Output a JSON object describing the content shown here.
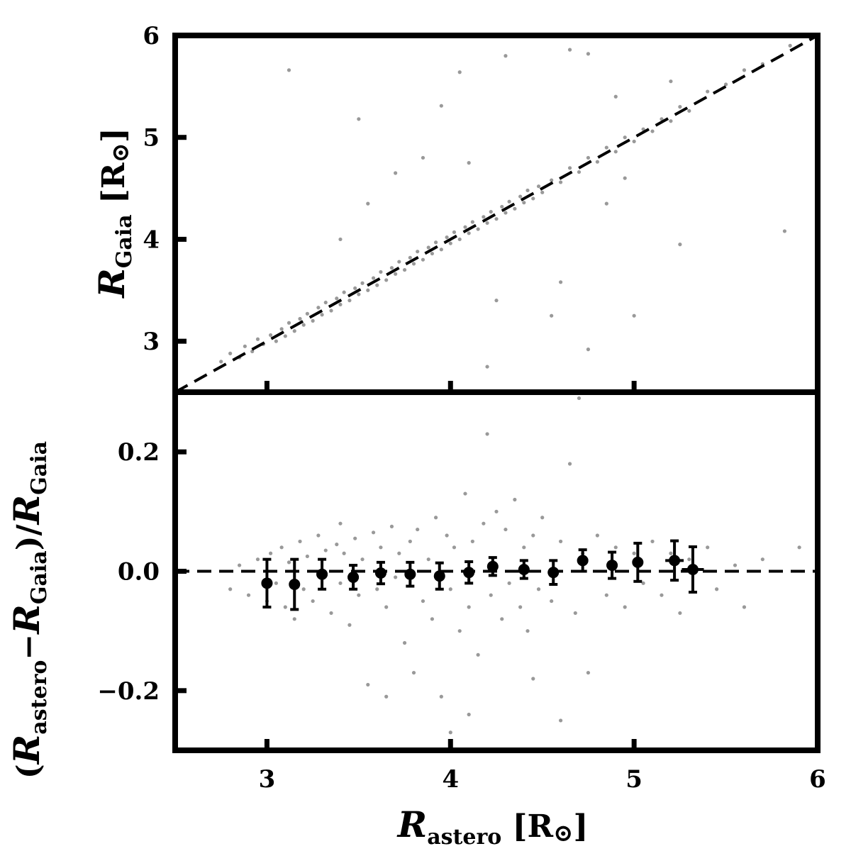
{
  "chart_data": [
    {
      "type": "scatter",
      "panel": "top",
      "xlabel": "R_astero [R⊙]",
      "ylabel": "R_Gaia [R⊙]",
      "xlim": [
        2.5,
        6
      ],
      "ylim": [
        2.5,
        6
      ],
      "xticks": [
        3,
        4,
        5,
        6
      ],
      "yticks": [
        3,
        4,
        5,
        6
      ],
      "grid": false,
      "point_color": "#999999",
      "reference_line": {
        "style": "dashed",
        "x": [
          2.5,
          6
        ],
        "y": [
          2.5,
          6
        ],
        "color": "#000000"
      },
      "series": [
        {
          "points": [
            [
              2.75,
              2.8
            ],
            [
              2.8,
              2.88
            ],
            [
              2.85,
              2.84
            ],
            [
              2.88,
              2.95
            ],
            [
              2.92,
              2.9
            ],
            [
              2.95,
              3.02
            ],
            [
              2.98,
              2.97
            ],
            [
              3.02,
              3.06
            ],
            [
              3.05,
              3.0
            ],
            [
              3.08,
              3.12
            ],
            [
              3.1,
              3.05
            ],
            [
              3.12,
              3.18
            ],
            [
              3.15,
              3.1
            ],
            [
              3.18,
              3.22
            ],
            [
              3.2,
              3.16
            ],
            [
              3.22,
              3.27
            ],
            [
              3.25,
              3.2
            ],
            [
              3.28,
              3.33
            ],
            [
              3.3,
              3.26
            ],
            [
              3.32,
              3.38
            ],
            [
              3.35,
              3.3
            ],
            [
              3.38,
              3.42
            ],
            [
              3.4,
              3.36
            ],
            [
              3.42,
              3.48
            ],
            [
              3.45,
              3.4
            ],
            [
              3.48,
              3.52
            ],
            [
              3.5,
              3.46
            ],
            [
              3.52,
              3.57
            ],
            [
              3.55,
              3.5
            ],
            [
              3.58,
              3.62
            ],
            [
              3.6,
              3.55
            ],
            [
              3.62,
              3.68
            ],
            [
              3.65,
              3.6
            ],
            [
              3.68,
              3.72
            ],
            [
              3.7,
              3.66
            ],
            [
              3.72,
              3.78
            ],
            [
              3.75,
              3.7
            ],
            [
              3.78,
              3.82
            ],
            [
              3.8,
              3.76
            ],
            [
              3.82,
              3.88
            ],
            [
              3.85,
              3.8
            ],
            [
              3.88,
              3.92
            ],
            [
              3.9,
              3.86
            ],
            [
              3.92,
              3.97
            ],
            [
              3.95,
              3.9
            ],
            [
              3.98,
              4.02
            ],
            [
              4.0,
              3.96
            ],
            [
              4.02,
              4.07
            ],
            [
              4.05,
              4.0
            ],
            [
              4.08,
              4.12
            ],
            [
              4.1,
              4.06
            ],
            [
              4.12,
              4.17
            ],
            [
              4.15,
              4.1
            ],
            [
              4.18,
              4.22
            ],
            [
              4.2,
              4.16
            ],
            [
              4.22,
              4.27
            ],
            [
              4.25,
              4.2
            ],
            [
              4.28,
              4.32
            ],
            [
              4.3,
              4.26
            ],
            [
              4.32,
              4.37
            ],
            [
              4.35,
              4.3
            ],
            [
              4.38,
              4.42
            ],
            [
              4.4,
              4.36
            ],
            [
              4.42,
              4.48
            ],
            [
              4.45,
              4.4
            ],
            [
              4.48,
              4.52
            ],
            [
              4.5,
              4.46
            ],
            [
              4.55,
              4.58
            ],
            [
              4.6,
              4.56
            ],
            [
              4.65,
              4.7
            ],
            [
              4.7,
              4.66
            ],
            [
              4.75,
              4.8
            ],
            [
              4.8,
              4.76
            ],
            [
              4.85,
              4.9
            ],
            [
              4.9,
              4.86
            ],
            [
              4.95,
              5.0
            ],
            [
              5.0,
              4.96
            ],
            [
              5.05,
              5.08
            ],
            [
              5.1,
              5.06
            ],
            [
              5.15,
              5.18
            ],
            [
              5.2,
              5.16
            ],
            [
              5.25,
              5.3
            ],
            [
              5.3,
              5.26
            ],
            [
              5.4,
              5.45
            ],
            [
              5.5,
              5.52
            ],
            [
              5.6,
              5.66
            ],
            [
              5.7,
              5.72
            ],
            [
              5.85,
              5.9
            ],
            [
              3.12,
              5.66
            ],
            [
              3.5,
              5.18
            ],
            [
              3.7,
              4.65
            ],
            [
              3.95,
              5.31
            ],
            [
              4.05,
              5.64
            ],
            [
              4.3,
              5.8
            ],
            [
              4.65,
              5.86
            ],
            [
              4.75,
              5.82
            ],
            [
              4.9,
              5.4
            ],
            [
              3.55,
              4.35
            ],
            [
              3.85,
              4.8
            ],
            [
              4.1,
              4.75
            ],
            [
              4.25,
              3.4
            ],
            [
              4.6,
              3.58
            ],
            [
              4.75,
              2.92
            ],
            [
              4.2,
              2.75
            ],
            [
              5.0,
              3.25
            ],
            [
              5.25,
              3.95
            ],
            [
              5.82,
              4.08
            ],
            [
              4.85,
              4.35
            ],
            [
              4.55,
              3.25
            ],
            [
              3.4,
              4.0
            ],
            [
              4.95,
              4.6
            ],
            [
              5.2,
              5.55
            ]
          ]
        }
      ]
    },
    {
      "type": "scatter",
      "panel": "bottom",
      "xlabel": "R_astero [R⊙]",
      "ylabel": "(R_astero − R_Gaia) / R_Gaia",
      "xlim": [
        2.5,
        6
      ],
      "ylim": [
        -0.3,
        0.3
      ],
      "xticks": [
        3,
        4,
        5,
        6
      ],
      "yticks": [
        -0.2,
        0.0,
        0.2
      ],
      "ytick_labels": [
        "−0.2",
        "0.0",
        "0.2"
      ],
      "grid": false,
      "point_color": "#999999",
      "reference_line": {
        "style": "dashed",
        "x": [
          2.5,
          6
        ],
        "y": [
          0,
          0
        ],
        "color": "#000000"
      },
      "series": [
        {
          "name": "",
          "points": [
            [
              2.8,
              -0.03
            ],
            [
              2.85,
              0.01
            ],
            [
              2.9,
              -0.04
            ],
            [
              2.95,
              0.02
            ],
            [
              3.0,
              -0.05
            ],
            [
              3.02,
              0.03
            ],
            [
              3.05,
              -0.02
            ],
            [
              3.08,
              0.04
            ],
            [
              3.1,
              -0.06
            ],
            [
              3.12,
              0.015
            ],
            [
              3.15,
              -0.08
            ],
            [
              3.18,
              0.05
            ],
            [
              3.2,
              -0.03
            ],
            [
              3.22,
              0.025
            ],
            [
              3.25,
              -0.05
            ],
            [
              3.28,
              0.06
            ],
            [
              3.3,
              -0.01
            ],
            [
              3.32,
              0.035
            ],
            [
              3.35,
              -0.07
            ],
            [
              3.38,
              0.045
            ],
            [
              3.4,
              -0.02
            ],
            [
              3.42,
              0.03
            ],
            [
              3.45,
              -0.09
            ],
            [
              3.48,
              0.055
            ],
            [
              3.5,
              -0.04
            ],
            [
              3.52,
              0.02
            ],
            [
              3.55,
              -0.19
            ],
            [
              3.58,
              0.065
            ],
            [
              3.6,
              -0.03
            ],
            [
              3.62,
              0.04
            ],
            [
              3.65,
              -0.06
            ],
            [
              3.68,
              0.075
            ],
            [
              3.7,
              -0.01
            ],
            [
              3.72,
              0.03
            ],
            [
              3.75,
              -0.12
            ],
            [
              3.78,
              0.05
            ],
            [
              3.8,
              -0.17
            ],
            [
              3.82,
              0.07
            ],
            [
              3.85,
              -0.05
            ],
            [
              3.88,
              0.02
            ],
            [
              3.9,
              -0.08
            ],
            [
              3.92,
              0.09
            ],
            [
              3.95,
              -0.21
            ],
            [
              3.98,
              0.06
            ],
            [
              4.0,
              -0.03
            ],
            [
              4.02,
              0.04
            ],
            [
              4.05,
              -0.1
            ],
            [
              4.08,
              0.13
            ],
            [
              4.1,
              -0.06
            ],
            [
              4.12,
              0.05
            ],
            [
              4.15,
              -0.14
            ],
            [
              4.18,
              0.08
            ],
            [
              4.2,
              0.23
            ],
            [
              4.22,
              -0.04
            ],
            [
              4.25,
              0.1
            ],
            [
              4.28,
              -0.08
            ],
            [
              4.3,
              0.07
            ],
            [
              4.32,
              -0.02
            ],
            [
              4.35,
              0.12
            ],
            [
              4.38,
              -0.06
            ],
            [
              4.4,
              0.04
            ],
            [
              4.42,
              -0.1
            ],
            [
              4.45,
              0.06
            ],
            [
              4.48,
              -0.03
            ],
            [
              4.5,
              0.09
            ],
            [
              4.55,
              -0.05
            ],
            [
              4.6,
              0.05
            ],
            [
              4.65,
              0.18
            ],
            [
              4.68,
              -0.07
            ],
            [
              4.7,
              0.29
            ],
            [
              4.72,
              0.03
            ],
            [
              4.75,
              -0.17
            ],
            [
              4.8,
              0.06
            ],
            [
              4.85,
              -0.04
            ],
            [
              4.9,
              0.04
            ],
            [
              4.95,
              -0.06
            ],
            [
              5.0,
              0.03
            ],
            [
              5.05,
              -0.02
            ],
            [
              5.1,
              0.05
            ],
            [
              5.15,
              -0.04
            ],
            [
              5.2,
              0.03
            ],
            [
              5.25,
              -0.07
            ],
            [
              5.3,
              0.02
            ],
            [
              5.4,
              0.04
            ],
            [
              5.45,
              -0.03
            ],
            [
              5.55,
              0.01
            ],
            [
              5.6,
              -0.06
            ],
            [
              5.7,
              0.02
            ],
            [
              5.9,
              0.04
            ],
            [
              5.05,
              0.3
            ],
            [
              3.65,
              -0.21
            ],
            [
              4.0,
              -0.27
            ],
            [
              4.1,
              -0.24
            ],
            [
              4.45,
              -0.18
            ],
            [
              3.4,
              0.08
            ],
            [
              4.6,
              -0.25
            ]
          ]
        },
        {
          "name": "",
          "style": "binned means with error bars",
          "color": "#000000",
          "x": [
            3.0,
            3.15,
            3.3,
            3.47,
            3.62,
            3.78,
            3.94,
            4.1,
            4.23,
            4.4,
            4.56,
            4.72,
            4.88,
            5.02,
            5.22,
            5.32
          ],
          "y": [
            -0.02,
            -0.022,
            -0.005,
            -0.01,
            -0.003,
            -0.005,
            -0.008,
            -0.002,
            0.008,
            0.003,
            -0.002,
            0.018,
            0.01,
            0.015,
            0.018,
            0.003
          ],
          "yerr": [
            0.04,
            0.042,
            0.025,
            0.02,
            0.018,
            0.02,
            0.022,
            0.018,
            0.015,
            0.015,
            0.02,
            0.018,
            0.022,
            0.032,
            0.033,
            0.038
          ],
          "xerr": [
            0.03,
            0.03,
            0.03,
            0.03,
            0.03,
            0.03,
            0.03,
            0.03,
            0.03,
            0.03,
            0.03,
            0.03,
            0.03,
            0.03,
            0.05,
            0.06
          ]
        }
      ]
    }
  ]
}
